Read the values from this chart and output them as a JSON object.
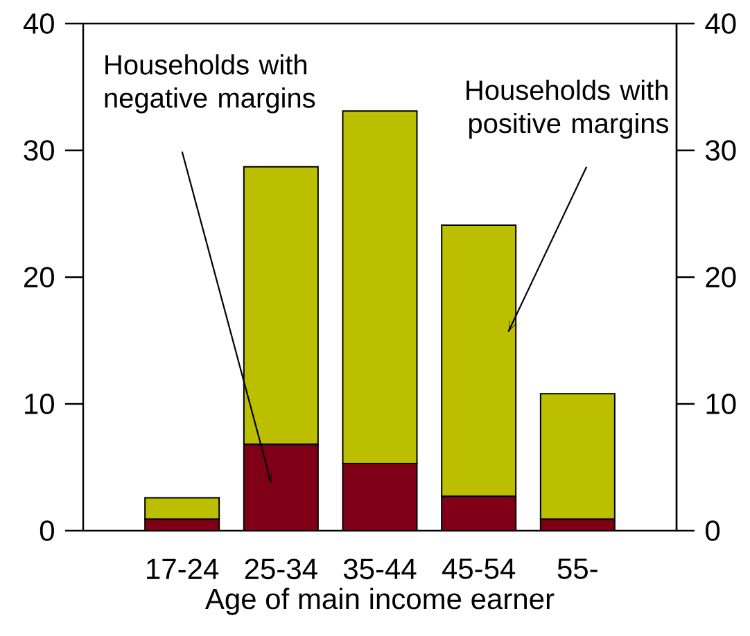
{
  "chart_data": {
    "type": "bar",
    "stacked": true,
    "xlabel": "Age of main income earner",
    "categories": [
      "17-24",
      "25-34",
      "35-44",
      "45-54",
      "55-"
    ],
    "series": [
      {
        "color": "#800018",
        "values": [
          0.9,
          6.8,
          5.3,
          2.7,
          0.9
        ]
      },
      {
        "color": "#bbbf00",
        "values": [
          1.7,
          21.9,
          27.8,
          21.4,
          9.9
        ]
      }
    ],
    "ylim": [
      0,
      40
    ],
    "yticks": [
      0,
      10,
      20,
      30,
      40
    ],
    "y2lim": [
      0,
      40
    ],
    "y2ticks": [
      0,
      10,
      20,
      30,
      40
    ],
    "grid": false,
    "annotations": [
      "Households with negative margins",
      "Households with positive margins"
    ]
  }
}
